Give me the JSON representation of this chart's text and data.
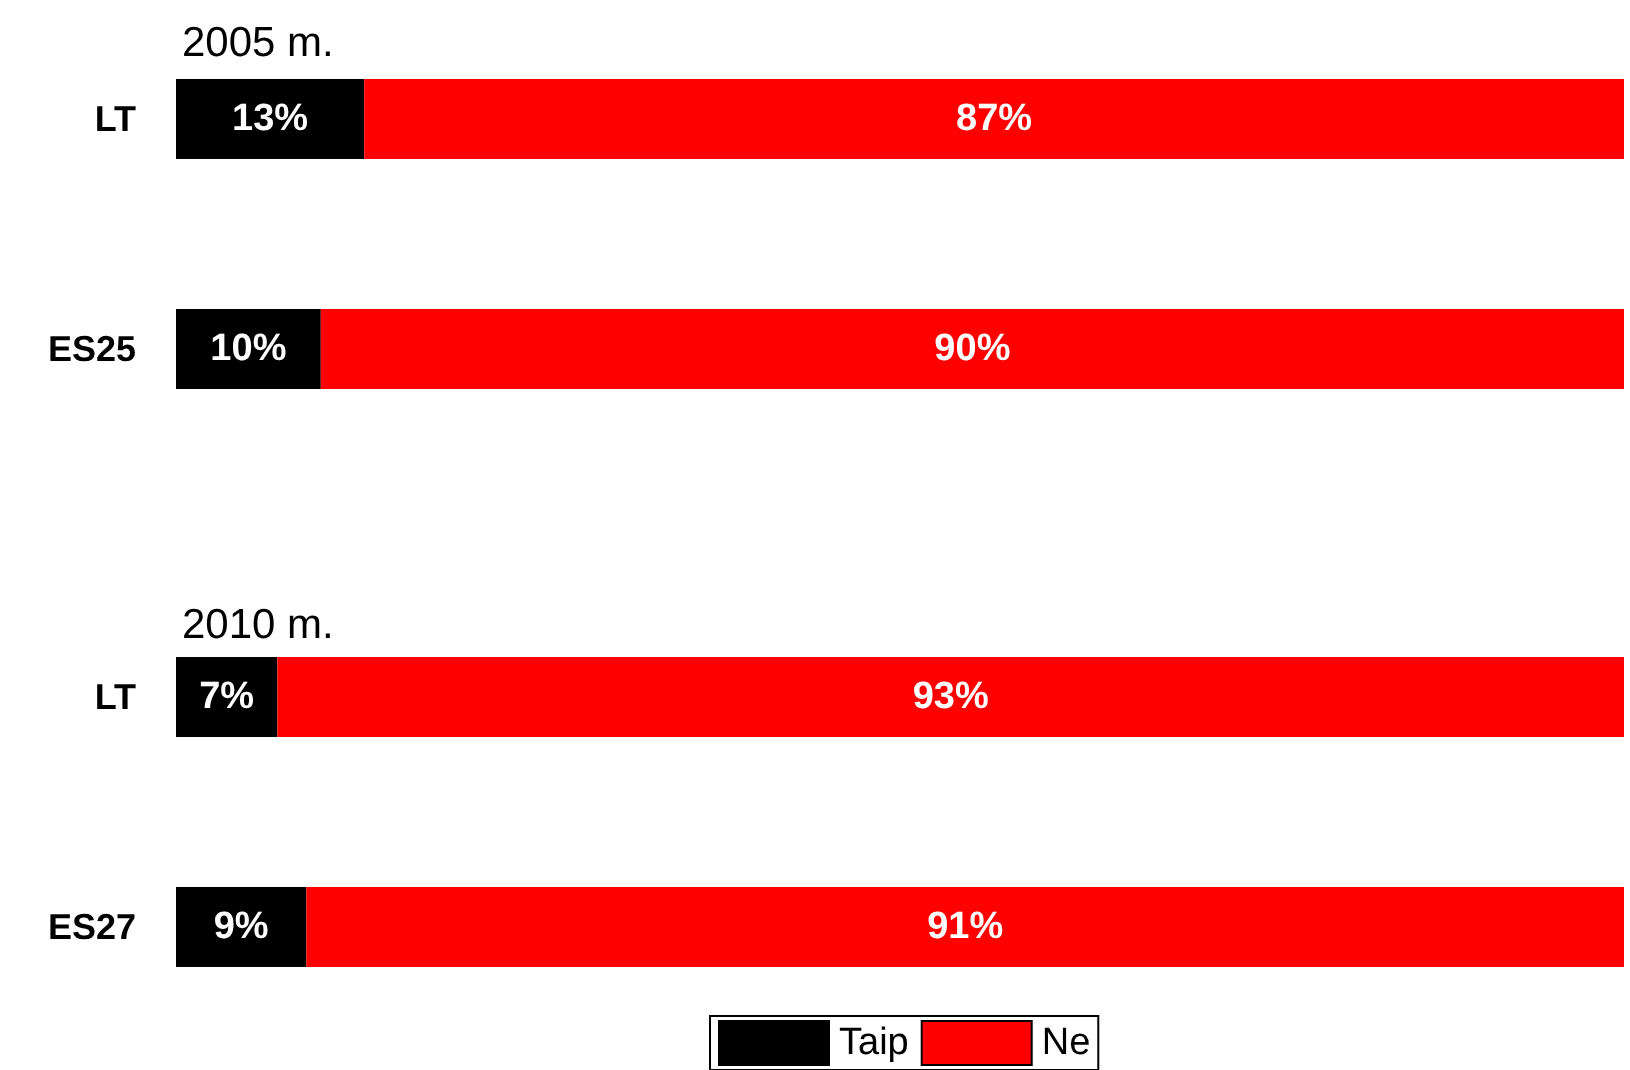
{
  "chart_data": [
    {
      "type": "bar",
      "title": "2005 m.",
      "orientation": "horizontal",
      "stacked": true,
      "categories": [
        "LT",
        "ES25"
      ],
      "tick_labels": "y",
      "grid": false,
      "legend": false,
      "series": [
        {
          "color": "#000000",
          "values": [
            13,
            10
          ],
          "value_labels": [
            "13%",
            "10%"
          ]
        },
        {
          "color": "#ff0000",
          "values": [
            87,
            90
          ],
          "value_labels": [
            "87%",
            "90%"
          ]
        }
      ]
    },
    {
      "type": "bar",
      "title": "2010 m.",
      "orientation": "horizontal",
      "stacked": true,
      "categories": [
        "LT",
        "ES27"
      ],
      "tick_labels": "y",
      "grid": false,
      "legend": "bottom",
      "series": [
        {
          "name": "Taip",
          "color": "#000000",
          "values": [
            7,
            9
          ],
          "value_labels": [
            "7%",
            "9%"
          ]
        },
        {
          "name": "Ne",
          "color": "#ff0000",
          "values": [
            93,
            91
          ],
          "value_labels": [
            "93%",
            "91%"
          ]
        }
      ]
    }
  ]
}
